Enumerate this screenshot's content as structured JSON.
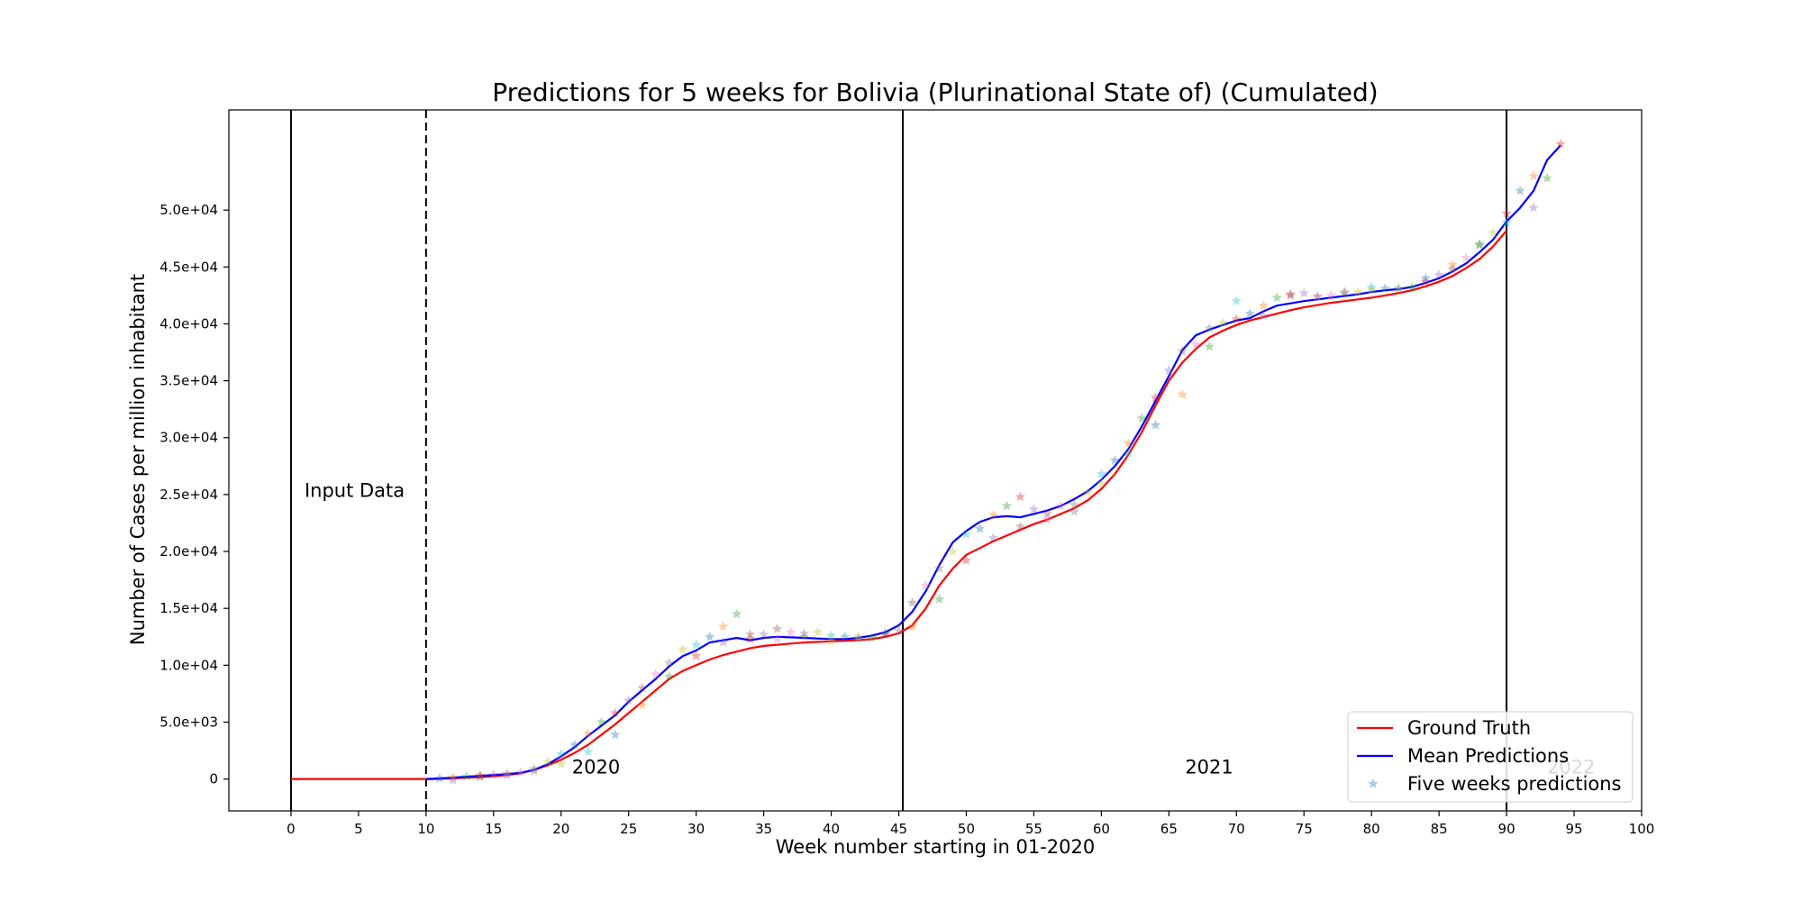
{
  "chart_data": {
    "type": "line",
    "title": "Predictions for 5 weeks for Bolivia (Plurinational State of) (Cumulated)",
    "xlabel": "Week number starting in 01-2020",
    "ylabel": "Number of Cases per million inhabitant",
    "xlim": [
      -4.6,
      100
    ],
    "ylim": [
      -2800,
      58800
    ],
    "x_ticks": [
      0,
      5,
      10,
      15,
      20,
      25,
      30,
      35,
      40,
      45,
      50,
      55,
      60,
      65,
      70,
      75,
      80,
      85,
      90,
      95,
      100
    ],
    "x_tick_labels": [
      "0",
      "5",
      "10",
      "15",
      "20",
      "25",
      "30",
      "35",
      "40",
      "45",
      "50",
      "55",
      "60",
      "65",
      "70",
      "75",
      "80",
      "85",
      "90",
      "95",
      "100"
    ],
    "y_ticks": [
      0,
      5000,
      10000,
      15000,
      20000,
      25000,
      30000,
      35000,
      40000,
      45000,
      50000
    ],
    "y_tick_labels": [
      "0",
      "5.0e+03",
      "1.0e+04",
      "1.5e+04",
      "2.0e+04",
      "2.5e+04",
      "3.0e+04",
      "3.5e+04",
      "4.0e+04",
      "4.5e+04",
      "5.0e+04"
    ],
    "grid": false,
    "legend_position": "lower right",
    "annotations": [
      {
        "text": "Input Data",
        "x": 1,
        "y": 24800
      },
      {
        "text": "2020",
        "x": 20.8,
        "y": 500
      },
      {
        "text": "2021",
        "x": 66.2,
        "y": 500
      },
      {
        "text": "2022",
        "x": 93,
        "y": 500,
        "faded": true
      }
    ],
    "vertical_lines": [
      {
        "x": 0,
        "style": "solid"
      },
      {
        "x": 10,
        "style": "dashed"
      },
      {
        "x": 45.3,
        "style": "solid"
      },
      {
        "x": 90,
        "style": "solid"
      }
    ],
    "series": [
      {
        "name": "Ground Truth",
        "color": "#ff0000",
        "x": [
          0,
          2,
          4,
          6,
          8,
          10,
          11,
          12,
          13,
          14,
          15,
          16,
          17,
          18,
          19,
          20,
          21,
          22,
          23,
          24,
          25,
          26,
          27,
          28,
          29,
          30,
          31,
          32,
          33,
          34,
          35,
          36,
          37,
          38,
          39,
          40,
          41,
          42,
          43,
          44,
          45,
          46,
          47,
          48,
          49,
          50,
          51,
          52,
          53,
          54,
          55,
          56,
          57,
          58,
          59,
          60,
          61,
          62,
          63,
          64,
          65,
          66,
          67,
          68,
          69,
          70,
          71,
          72,
          73,
          74,
          75,
          76,
          77,
          78,
          79,
          80,
          81,
          82,
          83,
          84,
          85,
          86,
          87,
          88,
          89,
          90
        ],
        "values": [
          0,
          0,
          0,
          0,
          0,
          0,
          20,
          60,
          110,
          170,
          250,
          350,
          500,
          800,
          1200,
          1700,
          2300,
          3000,
          3900,
          4800,
          5800,
          6800,
          7800,
          8800,
          9500,
          10000,
          10500,
          10900,
          11200,
          11500,
          11700,
          11800,
          11900,
          12000,
          12050,
          12100,
          12150,
          12200,
          12300,
          12500,
          12800,
          13500,
          15000,
          17000,
          18500,
          19700,
          20300,
          20900,
          21400,
          21900,
          22400,
          22800,
          23300,
          23800,
          24500,
          25500,
          26800,
          28500,
          30500,
          32800,
          35000,
          36600,
          37800,
          38800,
          39400,
          39900,
          40300,
          40600,
          40900,
          41200,
          41450,
          41650,
          41850,
          42000,
          42150,
          42300,
          42500,
          42700,
          42950,
          43300,
          43700,
          44200,
          44900,
          45700,
          46800,
          48200
        ]
      },
      {
        "name": "Mean Predictions",
        "color": "#0000ff",
        "x": [
          10,
          11,
          12,
          13,
          14,
          15,
          16,
          17,
          18,
          19,
          20,
          21,
          22,
          23,
          24,
          25,
          26,
          27,
          28,
          29,
          30,
          31,
          32,
          33,
          34,
          35,
          36,
          37,
          38,
          39,
          40,
          41,
          42,
          43,
          44,
          45,
          46,
          47,
          48,
          49,
          50,
          51,
          52,
          53,
          54,
          55,
          56,
          57,
          58,
          59,
          60,
          61,
          62,
          63,
          64,
          65,
          66,
          67,
          68,
          69,
          70,
          71,
          72,
          73,
          74,
          75,
          76,
          77,
          78,
          79,
          80,
          81,
          82,
          83,
          84,
          85,
          86,
          87,
          88,
          89,
          90,
          91,
          92,
          93,
          94
        ],
        "values": [
          0,
          50,
          120,
          200,
          280,
          350,
          430,
          550,
          800,
          1300,
          2000,
          2800,
          3800,
          4700,
          5600,
          6800,
          7800,
          8800,
          9900,
          10800,
          11300,
          12000,
          12200,
          12400,
          12200,
          12400,
          12500,
          12450,
          12400,
          12350,
          12300,
          12300,
          12400,
          12600,
          12900,
          13500,
          14700,
          16500,
          18800,
          20800,
          21800,
          22600,
          23000,
          23100,
          23000,
          23300,
          23600,
          24000,
          24600,
          25300,
          26300,
          27500,
          29000,
          31000,
          33200,
          35400,
          37700,
          39000,
          39500,
          39900,
          40300,
          40500,
          41100,
          41600,
          41800,
          42000,
          42150,
          42300,
          42450,
          42600,
          42800,
          42950,
          43050,
          43250,
          43600,
          44000,
          44600,
          45300,
          46300,
          47400,
          49000,
          50200,
          51700,
          54400,
          55700
        ]
      },
      {
        "name": "Five weeks predictions",
        "marker": "star",
        "color": "#1f77b4",
        "palette": [
          "#1f77b4",
          "#ff7f0e",
          "#2ca02c",
          "#d62728",
          "#9467bd",
          "#8c564b",
          "#e377c2",
          "#7f7f7f",
          "#bcbd22",
          "#17becf"
        ],
        "x": [
          11,
          12,
          13,
          14,
          15,
          16,
          17,
          18,
          19,
          20,
          21,
          22,
          23,
          24,
          25,
          26,
          27,
          28,
          29,
          30,
          31,
          32,
          33,
          34,
          35,
          36,
          37,
          38,
          39,
          40,
          41,
          42,
          43,
          44,
          45,
          46,
          47,
          48,
          49,
          50,
          51,
          52,
          53,
          54,
          55,
          56,
          57,
          58,
          59,
          60,
          61,
          62,
          63,
          64,
          65,
          66,
          67,
          68,
          69,
          70,
          71,
          72,
          73,
          74,
          75,
          76,
          77,
          78,
          79,
          80,
          81,
          82,
          83,
          84,
          85,
          86,
          87,
          88,
          89,
          90,
          91,
          92,
          93,
          94,
          12,
          14,
          16,
          18,
          20,
          22,
          24,
          26,
          28,
          30,
          32,
          34,
          36,
          38,
          40,
          42,
          44,
          46,
          48,
          50,
          52,
          54,
          56,
          58,
          60,
          62,
          64,
          66,
          68,
          70,
          72,
          74,
          76,
          78,
          80,
          82,
          84,
          86,
          88,
          90,
          92
        ],
        "values": [
          50,
          150,
          220,
          310,
          380,
          450,
          600,
          900,
          1500,
          2200,
          3000,
          4000,
          5000,
          5800,
          6900,
          8000,
          9200,
          10200,
          11400,
          11800,
          12500,
          13400,
          14500,
          12300,
          12700,
          13200,
          12900,
          12800,
          12900,
          12600,
          12500,
          12500,
          12400,
          12700,
          13000,
          15500,
          17000,
          18500,
          20000,
          21500,
          22000,
          23200,
          24000,
          24800,
          23700,
          23300,
          24000,
          24100,
          25200,
          26800,
          28000,
          29500,
          31700,
          33500,
          35900,
          37600,
          38200,
          39600,
          40100,
          42000,
          40900,
          41600,
          42300,
          42500,
          42700,
          42400,
          42500,
          42700,
          42800,
          43200,
          43100,
          43100,
          43200,
          43700,
          44300,
          44800,
          45800,
          46900,
          48000,
          48900,
          51700,
          53000,
          52800,
          55800,
          -100,
          180,
          320,
          700,
          1300,
          2400,
          3900,
          6500,
          9000,
          10800,
          12000,
          12700,
          12300,
          12500,
          12100,
          12300,
          12800,
          13400,
          15800,
          19200,
          21200,
          22200,
          22800,
          23500,
          26000,
          28600,
          31100,
          33800,
          38000,
          40400,
          40700,
          42600,
          42400,
          42800,
          43000,
          43100,
          44000,
          45200,
          47000,
          49700,
          50200
        ]
      }
    ]
  }
}
